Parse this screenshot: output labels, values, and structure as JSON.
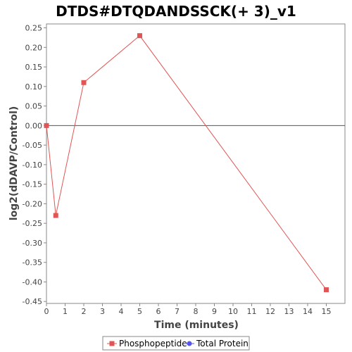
{
  "chart_data": {
    "type": "line",
    "title": "DTDS#DTQDANDSSCK(+ 3)_v1",
    "xlabel": "Time (minutes)",
    "ylabel": "log2(dDAVP/Control)",
    "xlim": [
      0,
      16
    ],
    "ylim": [
      -0.455,
      0.26
    ],
    "x_ticks": [
      0,
      1,
      2,
      3,
      4,
      5,
      6,
      7,
      8,
      9,
      10,
      11,
      12,
      13,
      14,
      15
    ],
    "y_ticks": [
      0.25,
      0.2,
      0.15,
      0.1,
      0.05,
      0.0,
      -0.05,
      -0.1,
      -0.15,
      -0.2,
      -0.25,
      -0.3,
      -0.35,
      -0.4,
      -0.45
    ],
    "y_tick_labels": [
      "0.25",
      "0.20",
      "0.15",
      "0.10",
      "0.05",
      "0.00",
      "-0.05",
      "-0.10",
      "-0.15",
      "-0.20",
      "-0.25",
      "-0.30",
      "-0.35",
      "-0.40",
      "-0.45"
    ],
    "zero_line": 0,
    "grid": false,
    "legend_position": "bottom",
    "series": [
      {
        "name": "Phosphopeptide",
        "color": "#e05555",
        "marker": "square",
        "x": [
          0,
          0.5,
          2,
          5,
          15
        ],
        "y": [
          0.0,
          -0.23,
          0.11,
          0.23,
          -0.42
        ]
      },
      {
        "name": "Total Protein",
        "color": "#5555ee",
        "marker": "circle",
        "x": [],
        "y": []
      }
    ]
  }
}
